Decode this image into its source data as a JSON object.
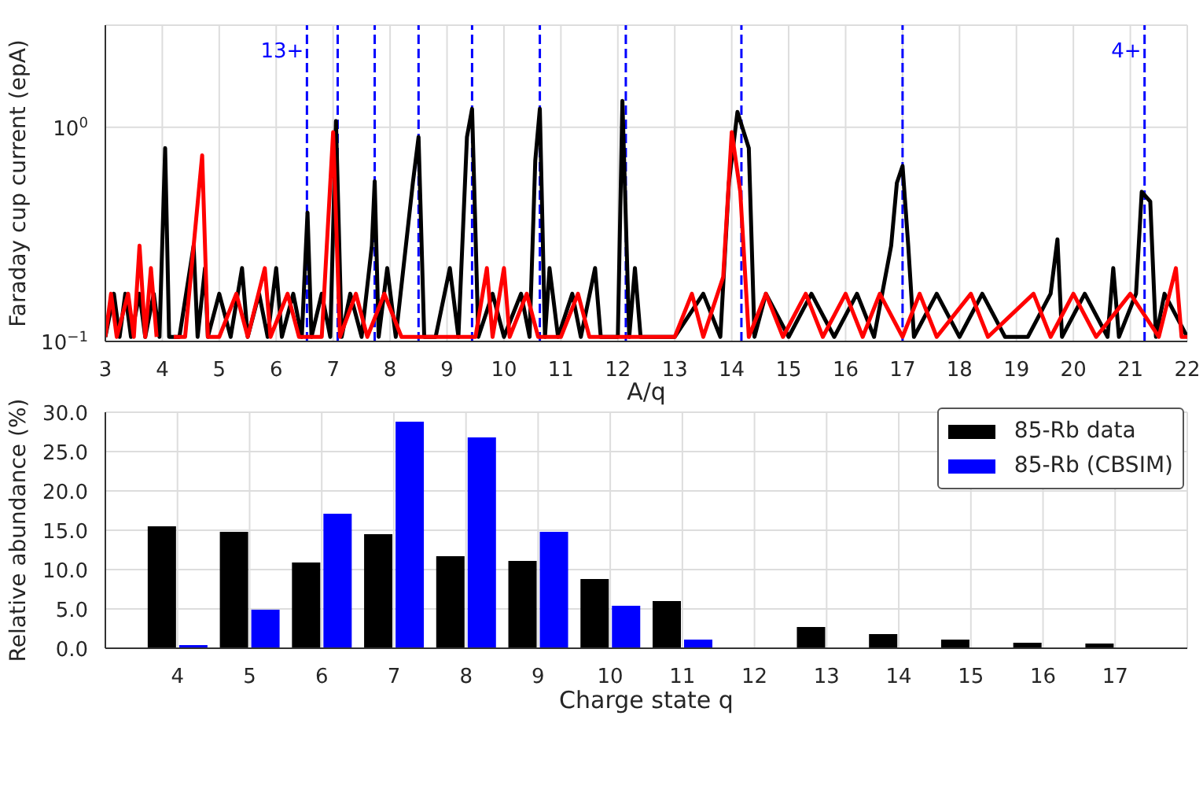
{
  "chart_data": [
    {
      "type": "line",
      "xlabel": "A/q",
      "ylabel": "Faraday cup current (epA)",
      "log": "y",
      "grid": true,
      "xlim": [
        3,
        22
      ],
      "xticks": [
        3,
        4,
        5,
        6,
        7,
        8,
        9,
        10,
        11,
        12,
        13,
        14,
        15,
        16,
        17,
        18,
        19,
        20,
        21,
        22
      ],
      "ylim": [
        0.1,
        3
      ],
      "yticks": [
        {
          "value": 0.1,
          "label": "10$^{−1}$"
        },
        {
          "value": 1,
          "label": "10$^{0}$"
        }
      ],
      "series": [
        {
          "color": "#000000",
          "x": [
            3.0,
            3.15,
            3.25,
            3.35,
            3.45,
            3.6,
            3.7,
            3.85,
            3.95,
            4.05,
            4.12,
            4.3,
            4.55,
            4.62,
            4.75,
            4.8,
            5.0,
            5.2,
            5.4,
            5.5,
            5.7,
            5.85,
            6.0,
            6.1,
            6.3,
            6.45,
            6.55,
            6.62,
            6.8,
            6.95,
            7.05,
            7.15,
            7.3,
            7.5,
            7.68,
            7.73,
            7.8,
            7.95,
            8.1,
            8.4,
            8.5,
            8.6,
            8.8,
            9.05,
            9.2,
            9.35,
            9.44,
            9.55,
            9.8,
            10.0,
            10.3,
            10.45,
            10.55,
            10.63,
            10.72,
            10.8,
            10.95,
            11.2,
            11.35,
            11.6,
            11.7,
            12.0,
            12.08,
            12.2,
            12.3,
            12.4,
            12.6,
            13.0,
            13.5,
            13.8,
            13.95,
            14.1,
            14.3,
            14.4,
            14.6,
            15.0,
            15.4,
            15.8,
            16.2,
            16.5,
            16.8,
            16.9,
            17.0,
            17.1,
            17.2,
            17.6,
            18.0,
            18.4,
            18.8,
            19.2,
            19.6,
            19.72,
            19.8,
            20.2,
            20.6,
            20.7,
            20.8,
            21.1,
            21.2,
            21.35,
            21.45,
            21.6,
            22.0
          ],
          "values": [
            0.105,
            0.167,
            0.105,
            0.167,
            0.105,
            0.167,
            0.105,
            0.167,
            0.105,
            0.8,
            0.105,
            0.105,
            0.28,
            0.105,
            0.22,
            0.105,
            0.167,
            0.105,
            0.22,
            0.105,
            0.167,
            0.105,
            0.22,
            0.105,
            0.167,
            0.105,
            0.4,
            0.105,
            0.167,
            0.105,
            1.07,
            0.105,
            0.167,
            0.105,
            0.28,
            0.56,
            0.105,
            0.22,
            0.105,
            0.55,
            0.9,
            0.105,
            0.105,
            0.22,
            0.105,
            0.9,
            1.22,
            0.105,
            0.167,
            0.105,
            0.167,
            0.105,
            0.7,
            1.22,
            0.105,
            0.22,
            0.105,
            0.167,
            0.105,
            0.22,
            0.105,
            0.105,
            1.33,
            0.105,
            0.22,
            0.105,
            0.105,
            0.105,
            0.167,
            0.105,
            0.55,
            1.18,
            0.8,
            0.105,
            0.167,
            0.105,
            0.167,
            0.105,
            0.167,
            0.105,
            0.28,
            0.55,
            0.66,
            0.28,
            0.105,
            0.167,
            0.105,
            0.167,
            0.105,
            0.105,
            0.167,
            0.3,
            0.105,
            0.167,
            0.105,
            0.22,
            0.105,
            0.167,
            0.5,
            0.45,
            0.105,
            0.167,
            0.105
          ]
        },
        {
          "color": "#ff0000",
          "x": [
            3.0,
            3.1,
            3.2,
            3.4,
            3.5,
            3.6,
            3.7,
            3.8,
            3.9,
            4.05,
            4.15,
            4.2,
            4.4,
            4.7,
            4.8,
            5.0,
            5.3,
            5.5,
            5.8,
            5.9,
            6.2,
            6.4,
            6.8,
            7.0,
            7.12,
            7.4,
            7.6,
            7.9,
            8.2,
            8.8,
            9.0,
            9.5,
            9.7,
            9.8,
            10.0,
            10.1,
            10.4,
            10.6,
            11.0,
            11.3,
            11.5,
            12.0,
            12.5,
            13.0,
            13.3,
            13.5,
            13.85,
            14.0,
            14.15,
            14.3,
            14.6,
            14.9,
            15.3,
            15.6,
            16.0,
            16.3,
            16.6,
            17.0,
            17.3,
            17.6,
            18.2,
            18.5,
            19.3,
            19.6,
            20.0,
            20.4,
            21.0,
            21.5,
            21.8,
            21.9,
            22.0
          ],
          "values": [
            0.105,
            0.167,
            0.105,
            0.167,
            0.105,
            0.28,
            0.105,
            0.22,
            0.105,
            null,
            null,
            0.105,
            0.105,
            0.74,
            0.105,
            0.105,
            0.167,
            0.105,
            0.22,
            0.105,
            0.167,
            0.105,
            0.105,
            0.95,
            0.105,
            0.167,
            0.105,
            0.167,
            0.105,
            0.105,
            0.105,
            0.105,
            0.22,
            0.105,
            0.22,
            0.105,
            0.167,
            0.105,
            0.105,
            0.167,
            0.105,
            0.105,
            0.105,
            0.105,
            0.167,
            0.105,
            0.2,
            0.95,
            0.5,
            0.105,
            0.167,
            0.105,
            0.167,
            0.105,
            0.167,
            0.105,
            0.167,
            0.105,
            0.167,
            0.105,
            0.167,
            0.105,
            0.167,
            0.105,
            0.167,
            0.105,
            0.167,
            0.105,
            0.22,
            0.105,
            0.105
          ]
        }
      ],
      "ref_lines": [
        {
          "axis": "x",
          "value": 6.54,
          "color": "#0000ff",
          "line_style": "dashed"
        },
        {
          "axis": "x",
          "value": 7.08,
          "color": "#0000ff",
          "line_style": "dashed"
        },
        {
          "axis": "x",
          "value": 7.73,
          "color": "#0000ff",
          "line_style": "dashed"
        },
        {
          "axis": "x",
          "value": 8.5,
          "color": "#0000ff",
          "line_style": "dashed"
        },
        {
          "axis": "x",
          "value": 9.44,
          "color": "#0000ff",
          "line_style": "dashed"
        },
        {
          "axis": "x",
          "value": 10.63,
          "color": "#0000ff",
          "line_style": "dashed"
        },
        {
          "axis": "x",
          "value": 12.14,
          "color": "#0000ff",
          "line_style": "dashed"
        },
        {
          "axis": "x",
          "value": 14.17,
          "color": "#0000ff",
          "line_style": "dashed"
        },
        {
          "axis": "x",
          "value": 17.0,
          "color": "#0000ff",
          "line_style": "dashed"
        },
        {
          "axis": "x",
          "value": 21.25,
          "color": "#0000ff",
          "line_style": "dashed"
        }
      ],
      "annotations": [
        {
          "text": "13+",
          "x": 6.54,
          "y": 2.3
        },
        {
          "text": "4+",
          "x": 21.25,
          "y": 2.3
        }
      ]
    },
    {
      "type": "bar",
      "xlabel": "Charge state q",
      "ylabel": "Relative abundance (%)",
      "grid": true,
      "legend": "top right",
      "x": [
        4,
        5,
        6,
        7,
        8,
        9,
        10,
        11,
        12,
        13,
        14,
        15,
        16,
        17
      ],
      "xlim": [
        3,
        18
      ],
      "xticks": [
        4,
        5,
        6,
        7,
        8,
        9,
        10,
        11,
        12,
        13,
        14,
        15,
        16,
        17
      ],
      "ylim": [
        0,
        30
      ],
      "yticks": [
        {
          "value": 0,
          "label": "0.0"
        },
        {
          "value": 5,
          "label": "5.0"
        },
        {
          "value": 10,
          "label": "10.0"
        },
        {
          "value": 15,
          "label": "15.0"
        },
        {
          "value": 20,
          "label": "20.0"
        },
        {
          "value": 25,
          "label": "25.0"
        },
        {
          "value": 30,
          "label": "30.0"
        }
      ],
      "series": [
        {
          "name": "85-Rb data",
          "color": "#000000",
          "values": [
            15.5,
            14.8,
            10.9,
            14.5,
            11.7,
            11.1,
            8.8,
            6.0,
            null,
            2.7,
            1.8,
            1.1,
            0.7,
            0.6
          ]
        },
        {
          "name": "85-Rb (CBSIM)",
          "color": "#0000ff",
          "values": [
            0.4,
            4.9,
            17.1,
            28.8,
            26.8,
            14.8,
            5.4,
            1.1,
            null,
            null,
            null,
            null,
            null,
            null
          ]
        }
      ]
    }
  ]
}
